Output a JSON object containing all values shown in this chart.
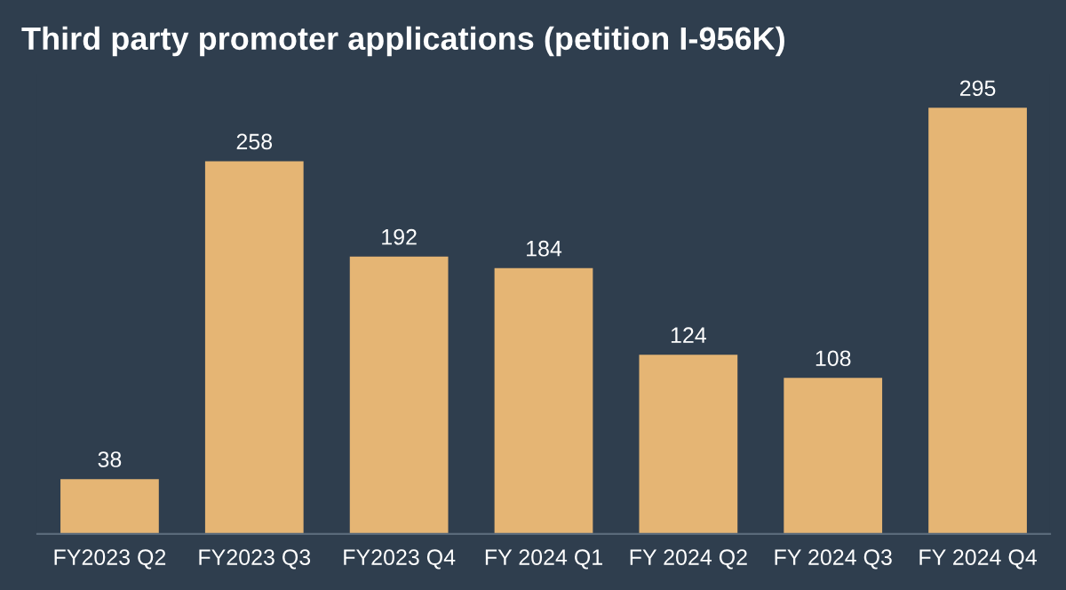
{
  "chart_data": {
    "type": "bar",
    "title": "Third party promoter applications (petition I-956K)",
    "categories": [
      "FY2023 Q2",
      "FY2023 Q3",
      "FY2023 Q4",
      "FY 2024 Q1",
      "FY 2024 Q2",
      "FY 2024 Q3",
      "FY 2024 Q4"
    ],
    "values": [
      38,
      258,
      192,
      184,
      124,
      108,
      295
    ],
    "color": "#e5b574",
    "data_labels": true,
    "grid": false,
    "legend": false
  }
}
